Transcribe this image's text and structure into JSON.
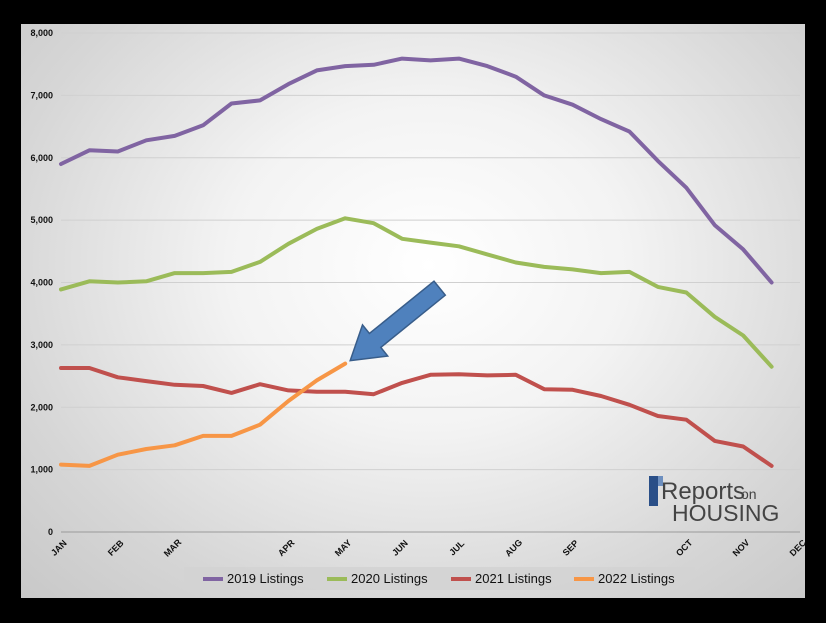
{
  "colors": {
    "2019": "#8064a2",
    "2020": "#9bbb59",
    "2021": "#c0504d",
    "2022": "#f79646",
    "arrow": "#4f81bd",
    "arrow_stroke": "#385d8a",
    "logo_text": "#444444"
  },
  "logo": {
    "line1": "Reports",
    "line1b": "on",
    "line2": "HOUSING"
  },
  "chart_data": {
    "type": "line",
    "ylim": [
      0,
      8000
    ],
    "y_ticks": [
      0,
      1000,
      2000,
      3000,
      4000,
      5000,
      6000,
      7000,
      8000
    ],
    "y_tick_labels": [
      "0",
      "1,000",
      "2,000",
      "3,000",
      "4,000",
      "5,000",
      "6,000",
      "7,000",
      "8,000"
    ],
    "month_labels": [
      "JAN",
      "FEB",
      "MAR",
      "APR",
      "MAY",
      "JUN",
      "JUL",
      "AUG",
      "SEP",
      "OCT",
      "NOV",
      "DEC"
    ],
    "month_label_weeks": [
      0,
      2,
      4,
      8,
      10,
      12,
      14,
      16,
      18,
      22,
      24,
      26
    ],
    "weeks": 27,
    "grid": "horizontal",
    "legend_position": "bottom",
    "annotation": "arrow pointing to the latest 2022 value",
    "series": [
      {
        "name": "2019 Listings",
        "color_key": "2019",
        "values": [
          5900,
          6120,
          6100,
          6280,
          6350,
          6520,
          6870,
          6920,
          7180,
          7400,
          7470,
          7490,
          7590,
          7560,
          7590,
          7470,
          7300,
          7000,
          6850,
          6620,
          6420,
          5950,
          5520,
          4920,
          4530,
          4000
        ]
      },
      {
        "name": "2020 Listings",
        "color_key": "2020",
        "values": [
          3890,
          4020,
          4000,
          4020,
          4150,
          4150,
          4170,
          4330,
          4620,
          4860,
          5030,
          4950,
          4700,
          4640,
          4580,
          4450,
          4320,
          4250,
          4210,
          4150,
          4170,
          3930,
          3840,
          3450,
          3150,
          2650
        ]
      },
      {
        "name": "2021 Listings",
        "color_key": "2021",
        "values": [
          2630,
          2630,
          2480,
          2420,
          2360,
          2340,
          2230,
          2370,
          2270,
          2250,
          2250,
          2210,
          2390,
          2520,
          2530,
          2510,
          2520,
          2290,
          2280,
          2180,
          2040,
          1860,
          1800,
          1460,
          1370,
          1060
        ]
      },
      {
        "name": "2022 Listings",
        "color_key": "2022",
        "values": [
          1080,
          1060,
          1240,
          1330,
          1390,
          1540,
          1540,
          1720,
          2100,
          2430,
          2700
        ]
      }
    ]
  }
}
